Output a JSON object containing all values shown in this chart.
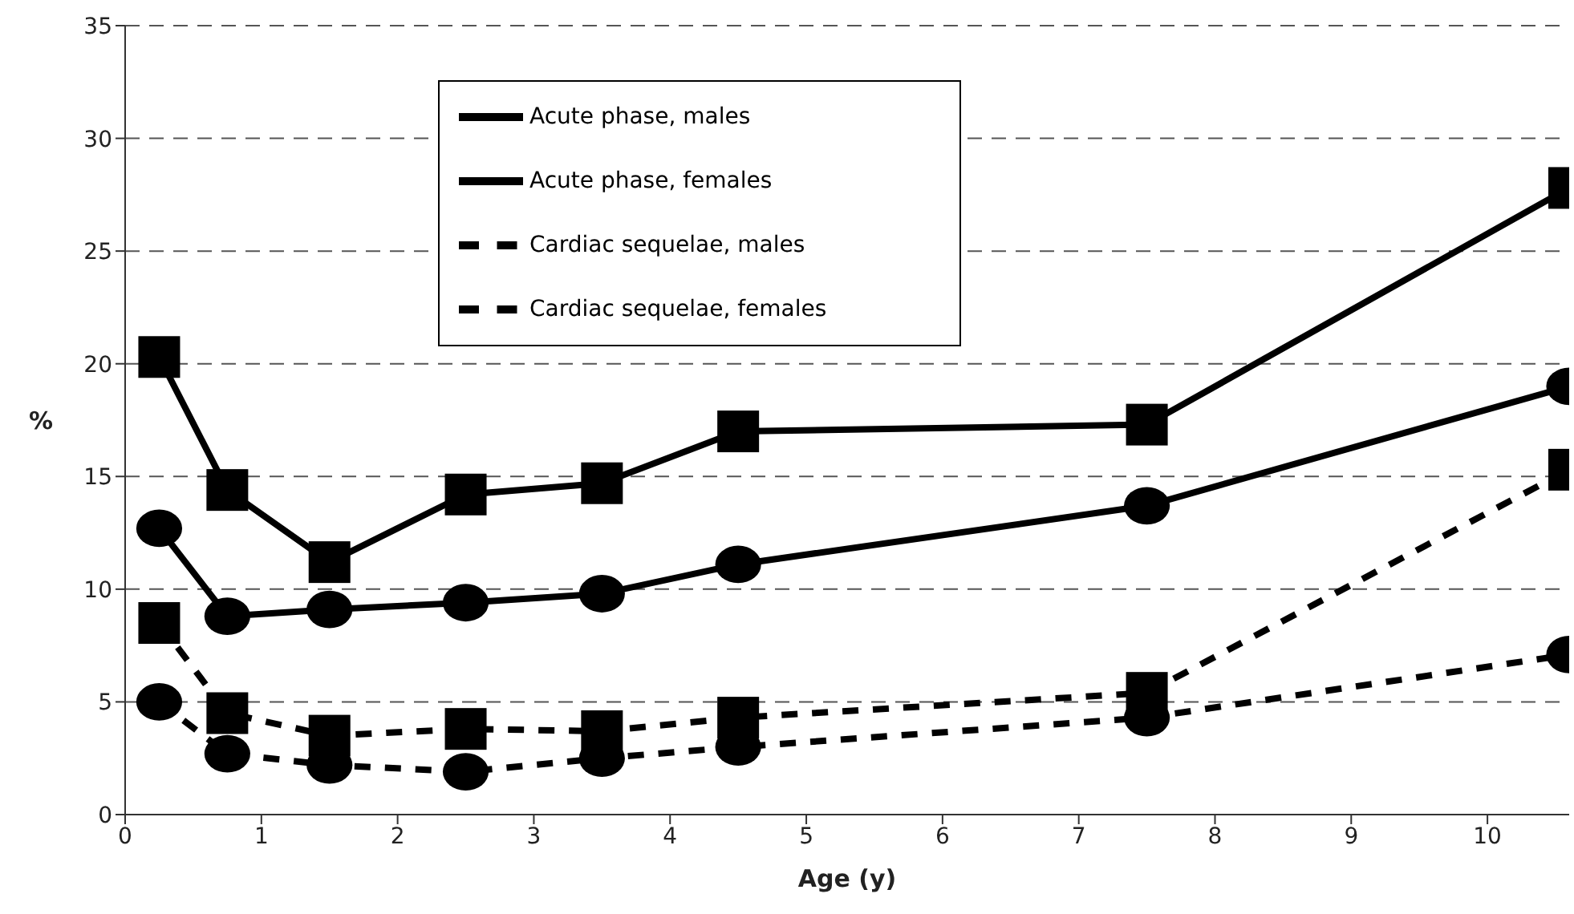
{
  "chart_data": {
    "type": "line",
    "xlabel": "Age (y)",
    "ylabel": "%",
    "x": [
      0.25,
      0.75,
      1.5,
      2.5,
      3.5,
      4.5,
      7.5,
      10.6
    ],
    "series": [
      {
        "name": "Acute phase, males",
        "color": "#000000",
        "marker": "square",
        "line_style": "solid",
        "values": [
          20.3,
          14.4,
          11.2,
          14.2,
          14.7,
          17.0,
          17.3,
          27.8
        ]
      },
      {
        "name": "Acute phase, females",
        "color": "#000000",
        "marker": "circle",
        "line_style": "solid",
        "values": [
          12.7,
          8.8,
          9.1,
          9.4,
          9.8,
          11.1,
          13.7,
          19.0
        ]
      },
      {
        "name": "Cardiac sequelae, males",
        "color": "#000000",
        "marker": "square",
        "line_style": "dashed",
        "values": [
          8.5,
          4.5,
          3.5,
          3.8,
          3.7,
          4.3,
          5.4,
          15.3
        ]
      },
      {
        "name": "Cardiac sequelae, females",
        "color": "#000000",
        "marker": "circle",
        "line_style": "dashed",
        "values": [
          5.0,
          2.7,
          2.2,
          1.9,
          2.5,
          3.0,
          4.3,
          7.1
        ]
      }
    ],
    "xlim": [
      0,
      10.6
    ],
    "xticks": [
      0,
      1,
      2,
      3,
      4,
      5,
      6,
      7,
      8,
      9,
      10
    ],
    "ylim": [
      0,
      35
    ],
    "yticks": [
      0,
      5,
      10,
      15,
      20,
      25,
      30,
      35
    ],
    "grid": "y",
    "legend": "top left"
  }
}
